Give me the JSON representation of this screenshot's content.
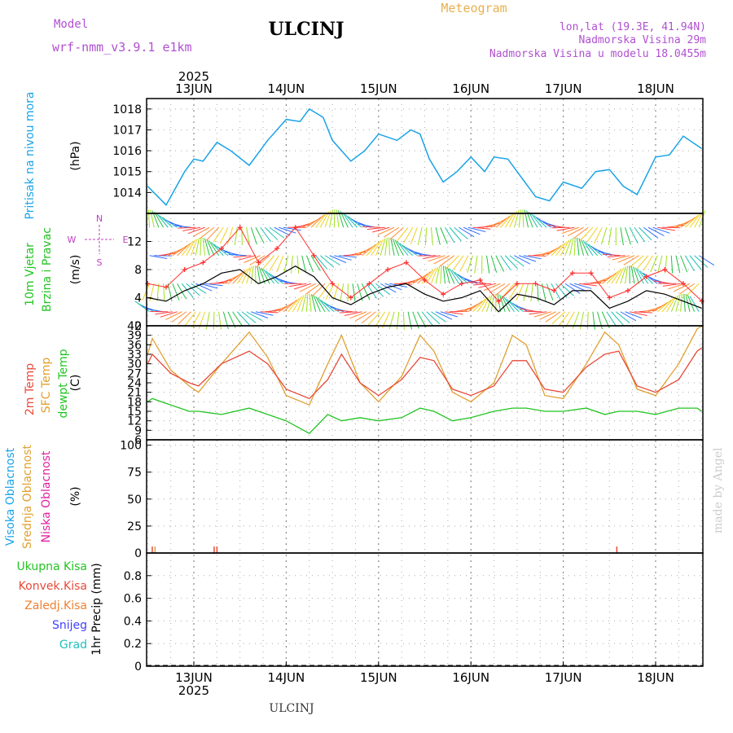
{
  "header": {
    "title": "ULCINJ",
    "model_label": "Model",
    "model_name": "wrf-nmm_v3.9.1  e1km",
    "product": "Meteogram",
    "location": "lon,lat (19.3E, 41.94N)",
    "elevation": "Nadmorska Visina 29m",
    "model_elevation": "Nadmorska Visina u modelu 18.0455m",
    "year_top": "2025",
    "year_bottom": "2025",
    "footer_station": "ULCINJ",
    "credit": "made by Angel"
  },
  "colors": {
    "pressure": "#1aa3e8",
    "temp_2m": "#e84a3a",
    "temp_sfc": "#e0a030",
    "dewpoint": "#22c422",
    "header_purple": "#b050d0",
    "header_orange": "#e8b050",
    "grid": "#888888",
    "wind_ms": "#000000",
    "gust": "#ff3030",
    "compass": "#c040c0"
  },
  "days": [
    "13JUN",
    "14JUN",
    "15JUN",
    "16JUN",
    "17JUN",
    "18JUN"
  ],
  "chart_data": [
    {
      "type": "line",
      "panel": "pressure",
      "ylabel_units": "(hPa)",
      "side_labels": [
        "Pritisak na nivou mora"
      ],
      "ylim": [
        1013,
        1018.5
      ],
      "yticks": [
        1014,
        1015,
        1016,
        1017,
        1018
      ],
      "grid": true,
      "x": [
        0.5,
        0.7,
        0.9,
        1.0,
        1.1,
        1.25,
        1.4,
        1.6,
        1.8,
        2.0,
        2.15,
        2.25,
        2.4,
        2.5,
        2.7,
        2.85,
        3.0,
        3.2,
        3.35,
        3.45,
        3.55,
        3.7,
        3.85,
        4.0,
        4.15,
        4.25,
        4.4,
        4.5,
        4.7,
        4.85,
        5.0,
        5.2,
        5.35,
        5.5,
        5.65,
        5.8,
        6.0,
        6.15,
        6.3,
        6.5
      ],
      "series": [
        {
          "values": [
            1014.3,
            1013.4,
            1015.0,
            1015.6,
            1015.5,
            1016.4,
            1016.0,
            1015.3,
            1016.5,
            1017.5,
            1017.4,
            1018.0,
            1017.6,
            1016.5,
            1015.5,
            1016.0,
            1016.8,
            1016.5,
            1017.0,
            1016.8,
            1015.6,
            1014.5,
            1015.0,
            1015.7,
            1015.0,
            1015.7,
            1015.6,
            1015.0,
            1013.8,
            1013.6,
            1014.5,
            1014.2,
            1015.0,
            1015.1,
            1014.3,
            1013.9,
            1015.7,
            1015.8,
            1016.7,
            1016.1
          ]
        }
      ]
    },
    {
      "type": "line",
      "panel": "wind",
      "ylabel_units": "(m/s)",
      "side_labels": [
        "10m Vjetar",
        "Brzina i Pravac"
      ],
      "compass": {
        "n": "N",
        "s": "S",
        "e": "E",
        "w": "W"
      },
      "ylim": [
        0,
        16
      ],
      "yticks": [
        0,
        4,
        8,
        12
      ],
      "grid": true,
      "x": [
        0.5,
        0.7,
        0.9,
        1.1,
        1.3,
        1.5,
        1.7,
        1.9,
        2.1,
        2.3,
        2.5,
        2.7,
        2.9,
        3.1,
        3.3,
        3.5,
        3.7,
        3.9,
        4.1,
        4.3,
        4.5,
        4.7,
        4.9,
        5.1,
        5.3,
        5.5,
        5.7,
        5.9,
        6.1,
        6.3,
        6.5
      ],
      "series": [
        {
          "name": "speed",
          "values": [
            4.0,
            3.5,
            5.0,
            6.0,
            7.5,
            8.0,
            6.0,
            7.0,
            8.5,
            7.0,
            4.0,
            3.0,
            4.5,
            5.5,
            6.0,
            4.5,
            3.5,
            4.0,
            5.0,
            2.0,
            4.5,
            4.0,
            3.0,
            5.0,
            5.0,
            2.5,
            3.5,
            5.0,
            4.5,
            3.5,
            2.5
          ]
        },
        {
          "name": "gust",
          "values": [
            6.0,
            5.5,
            8.0,
            9.0,
            11.0,
            14.0,
            9.0,
            11.0,
            14.0,
            10.0,
            6.0,
            4.0,
            6.0,
            8.0,
            9.0,
            6.5,
            4.5,
            6.0,
            6.5,
            3.5,
            6.0,
            6.0,
            5.0,
            7.5,
            7.5,
            4.0,
            5.0,
            7.0,
            8.0,
            6.0,
            3.5
          ]
        }
      ]
    },
    {
      "type": "line",
      "panel": "temperature",
      "ylabel_units": "(C)",
      "side_labels": [
        "2m Temp",
        "SFC Temp",
        "dewpt Temp"
      ],
      "ylim": [
        6,
        42
      ],
      "yticks": [
        6,
        9,
        12,
        15,
        18,
        21,
        24,
        27,
        30,
        33,
        36,
        39,
        42
      ],
      "grid": true,
      "x": [
        0.5,
        0.55,
        0.75,
        0.95,
        1.05,
        1.3,
        1.6,
        1.8,
        2.0,
        2.25,
        2.45,
        2.6,
        2.8,
        3.0,
        3.25,
        3.45,
        3.6,
        3.8,
        4.0,
        4.25,
        4.45,
        4.6,
        4.8,
        5.0,
        5.25,
        5.45,
        5.6,
        5.8,
        6.0,
        6.25,
        6.45,
        6.5
      ],
      "series": [
        {
          "name": "2m Temp",
          "values": [
            30,
            33,
            27,
            24,
            23,
            30,
            34,
            30,
            22,
            19,
            25,
            33,
            24,
            20,
            25,
            32,
            31,
            22,
            20,
            23,
            31,
            31,
            22,
            21,
            29,
            33,
            34,
            23,
            21,
            25,
            34,
            35
          ]
        },
        {
          "name": "SFC Temp",
          "values": [
            33,
            38,
            28,
            23,
            21,
            30,
            40,
            32,
            20,
            17,
            30,
            39,
            24,
            18,
            26,
            39,
            34,
            21,
            18,
            24,
            39,
            36,
            20,
            19,
            30,
            40,
            36,
            22,
            20,
            30,
            41,
            42
          ]
        },
        {
          "name": "dewpt Temp",
          "values": [
            18,
            19,
            17,
            15,
            15,
            14,
            16,
            14,
            12,
            8,
            14,
            12,
            13,
            12,
            13,
            16,
            15,
            12,
            13,
            15,
            16,
            16,
            15,
            15,
            16,
            14,
            15,
            15,
            14,
            16,
            16,
            15
          ]
        }
      ]
    },
    {
      "type": "bar",
      "panel": "clouds",
      "ylabel_units": "(%)",
      "side_labels": [
        "Visoka Oblacnost",
        "Srednja Oblacnost",
        "Niska Oblacnost"
      ],
      "ylim": [
        0,
        105
      ],
      "yticks": [
        0,
        25,
        50,
        75,
        100
      ],
      "grid": true,
      "x": [
        0.55,
        0.58,
        1.22,
        1.25,
        5.58
      ],
      "series": [
        {
          "name": "Niska Oblacnost",
          "values": [
            3,
            0,
            3,
            3,
            3
          ]
        },
        {
          "name": "Srednja Oblacnost",
          "values": [
            0,
            3,
            0,
            0,
            0
          ]
        }
      ]
    },
    {
      "type": "bar",
      "panel": "precip",
      "ylabel_units": "1hr Precip (mm)",
      "legend": [
        "Ukupna Kisa",
        "Konvek.Kisa",
        "Zaledj.Kisa",
        "Snijeg",
        "Grad"
      ],
      "legend_colors": [
        "#22c422",
        "#e84a3a",
        "#f08030",
        "#4040ff",
        "#20c0c0"
      ],
      "ylim": [
        0,
        1.0
      ],
      "yticks": [
        0,
        0.2,
        0.4,
        0.6,
        0.8
      ],
      "grid": true,
      "x": [],
      "values": []
    }
  ]
}
